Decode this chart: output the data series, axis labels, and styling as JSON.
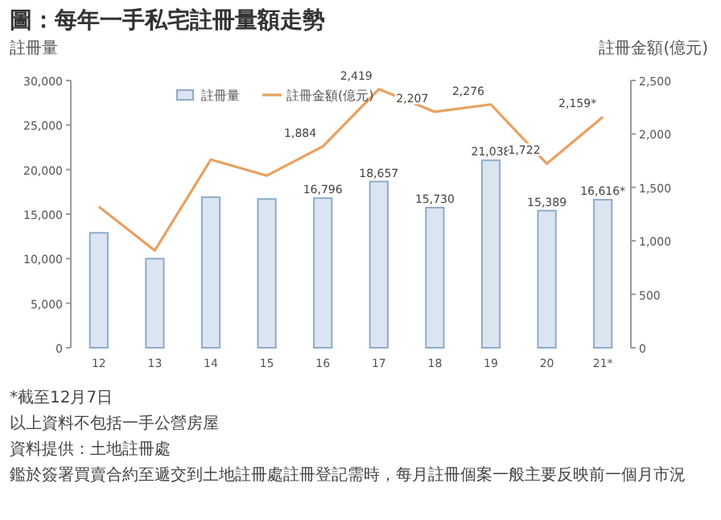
{
  "chart_data": {
    "type": "bar",
    "title": "圖：每年一手私宅註冊量額走勢",
    "ylabel": "註冊量",
    "y2label": "註冊金額(億元)",
    "categories": [
      "12",
      "13",
      "14",
      "15",
      "16",
      "17",
      "18",
      "19",
      "20",
      "21*"
    ],
    "series": [
      {
        "name": "註冊量",
        "color": "#dbe5f1",
        "values": [
          12900,
          10000,
          16900,
          16700,
          16796,
          18657,
          15730,
          21038,
          15389,
          16616
        ],
        "value_labels": [
          null,
          null,
          null,
          null,
          "16,796",
          "18,657",
          "15,730",
          "21,038",
          "15,389",
          "16,616*"
        ]
      },
      {
        "name": "註冊金額(億元)",
        "type": "line",
        "axis": "y2",
        "color": "#e8a060",
        "values": [
          1320,
          910,
          1760,
          1610,
          1884,
          2419,
          2207,
          2276,
          1722,
          2159
        ],
        "value_labels": [
          null,
          null,
          null,
          null,
          "1,884",
          "2,419",
          "2,207",
          "2,276",
          "1,722",
          "2,159*"
        ]
      }
    ],
    "ylim": [
      0,
      30000
    ],
    "yticks": [
      0,
      {
        "value": 5000,
        "label": "5,000"
      },
      {
        "value": 10000,
        "label": "10,000"
      },
      {
        "value": 15000,
        "label": "15,000"
      },
      {
        "value": 20000,
        "label": "20,000"
      },
      {
        "value": 25000,
        "label": "25,000"
      },
      {
        "value": 30000,
        "label": "30,000"
      }
    ],
    "y2lim": [
      0,
      2500
    ],
    "y2ticks": [
      0,
      500,
      {
        "value": 1000,
        "label": "1,000"
      },
      {
        "value": 1500,
        "label": "1,500"
      },
      {
        "value": 2000,
        "label": "2,000"
      },
      {
        "value": 2500,
        "label": "2,500"
      }
    ],
    "legend": "top",
    "grid": false,
    "marker": "none",
    "line_style": "solid",
    "annotations": [
      "*截至12月7日",
      "以上資料不包括一手公營房屋",
      "資料提供：土地註冊處",
      "鑑於簽署買賣合約至遞交到土地註冊處註冊登記需時，每月註冊個案一般主要反映前一個月市況"
    ]
  }
}
